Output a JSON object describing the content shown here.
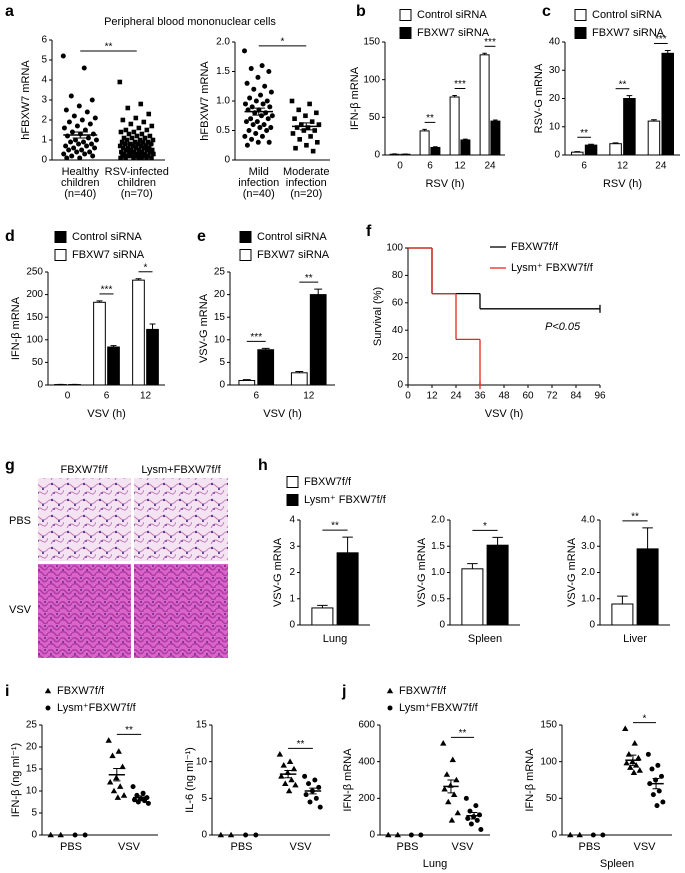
{
  "histology": {
    "panel": "g",
    "columns": [
      "FBXW7f/f",
      "Lysm+FBXW7f/f"
    ],
    "rows": [
      "PBS",
      "VSV"
    ]
  },
  "chart_data": [
    {
      "type": "dot",
      "panel": "a",
      "title": "Peripheral blood mononuclear cells",
      "ylabel": "hFBXW7 mRNA",
      "categories": [
        [
          "Healthy",
          "children",
          "(n=40)"
        ],
        [
          "RSV-infected",
          "children",
          "(n=70)"
        ]
      ],
      "markers": [
        "circle",
        "square"
      ],
      "color": "#000000",
      "points": [
        [
          5.2,
          4.6,
          3.2,
          3.0,
          2.7,
          2.5,
          2.4,
          2.2,
          2.1,
          2.0,
          1.9,
          1.8,
          1.7,
          1.6,
          1.5,
          1.4,
          1.3,
          1.3,
          1.2,
          1.1,
          1.0,
          1.0,
          0.9,
          0.9,
          0.8,
          0.8,
          0.7,
          0.7,
          0.6,
          0.6,
          0.5,
          0.5,
          0.4,
          0.4,
          0.3,
          0.3,
          0.2,
          0.2,
          0.1,
          0.1
        ],
        [
          3.9,
          2.8,
          2.6,
          2.3,
          2.1,
          2.0,
          1.9,
          1.8,
          1.7,
          1.6,
          1.5,
          1.5,
          1.4,
          1.4,
          1.3,
          1.3,
          1.2,
          1.2,
          1.1,
          1.1,
          1.1,
          1.0,
          1.0,
          1.0,
          0.9,
          0.9,
          0.9,
          0.9,
          0.8,
          0.8,
          0.8,
          0.8,
          0.7,
          0.7,
          0.7,
          0.7,
          0.6,
          0.6,
          0.6,
          0.6,
          0.6,
          0.5,
          0.5,
          0.5,
          0.5,
          0.5,
          0.4,
          0.4,
          0.4,
          0.4,
          0.4,
          0.3,
          0.3,
          0.3,
          0.3,
          0.3,
          0.3,
          0.2,
          0.2,
          0.2,
          0.2,
          0.2,
          0.2,
          0.1,
          0.1,
          0.1,
          0.1,
          0.1,
          0.1,
          0.1
        ]
      ],
      "means": [
        1.25,
        0.8
      ],
      "sems": [
        0.15,
        0.08
      ],
      "ylim": [
        0,
        6
      ],
      "yticks": [
        0,
        1,
        2,
        3,
        4,
        5,
        6
      ],
      "significance": [
        {
          "label": "**"
        }
      ]
    },
    {
      "type": "dot",
      "ylabel": "hFBXW7 mRNA",
      "categories": [
        [
          "Mild",
          "infection",
          "(n=40)"
        ],
        [
          "Moderate",
          "infection",
          "(n=20)"
        ]
      ],
      "markers": [
        "circle",
        "square"
      ],
      "color": "#000000",
      "points": [
        [
          1.85,
          1.6,
          1.55,
          1.5,
          1.4,
          1.3,
          1.25,
          1.2,
          1.15,
          1.1,
          1.05,
          1.0,
          1.0,
          0.95,
          0.95,
          0.9,
          0.9,
          0.85,
          0.85,
          0.8,
          0.8,
          0.75,
          0.75,
          0.7,
          0.7,
          0.65,
          0.65,
          0.6,
          0.6,
          0.55,
          0.55,
          0.5,
          0.5,
          0.45,
          0.4,
          0.4,
          0.35,
          0.3,
          0.3,
          0.25
        ],
        [
          1.0,
          0.95,
          0.85,
          0.8,
          0.75,
          0.7,
          0.65,
          0.6,
          0.6,
          0.55,
          0.55,
          0.5,
          0.5,
          0.45,
          0.4,
          0.35,
          0.3,
          0.25,
          0.2,
          0.15
        ]
      ],
      "means": [
        0.82,
        0.57
      ],
      "sems": [
        0.06,
        0.06
      ],
      "ylim": [
        0,
        2
      ],
      "yticks": [
        0,
        0.5,
        {
          "value": 1,
          "label": "1.0"
        },
        1.5,
        {
          "value": 2,
          "label": "2.0"
        }
      ],
      "significance": [
        {
          "label": "*"
        }
      ]
    },
    {
      "type": "bar",
      "panel": "b",
      "ylabel": "IFN-β mRNA",
      "xlabel": "RSV (h)",
      "categories": [
        "0",
        "6",
        "12",
        "24"
      ],
      "series": [
        {
          "name": "Control siRNA",
          "color": "#ffffff",
          "values": [
            1,
            32,
            77,
            133
          ],
          "errors": [
            0.5,
            2,
            2,
            2
          ]
        },
        {
          "name": "FBXW7 siRNA",
          "color": "#000000",
          "values": [
            1,
            10,
            20,
            45
          ],
          "errors": [
            0.3,
            1,
            1,
            1.5
          ]
        }
      ],
      "ylim": [
        0,
        150
      ],
      "yticks": [
        0,
        50,
        100,
        150
      ],
      "legend": "top",
      "significance": [
        {
          "label": "**",
          "category": 1
        },
        {
          "label": "***",
          "category": 2
        },
        {
          "label": "***",
          "category": 3
        }
      ]
    },
    {
      "type": "bar",
      "panel": "c",
      "ylabel": "RSV-G mRNA",
      "xlabel": "RSV (h)",
      "categories": [
        "6",
        "12",
        "24"
      ],
      "series": [
        {
          "name": "Control siRNA",
          "color": "#ffffff",
          "values": [
            1,
            4,
            12
          ],
          "errors": [
            0.2,
            0.3,
            0.5
          ]
        },
        {
          "name": "FBXW7 siRNA",
          "color": "#000000",
          "values": [
            3.5,
            20,
            36
          ],
          "errors": [
            0.3,
            1,
            1
          ]
        }
      ],
      "ylim": [
        0,
        40
      ],
      "yticks": [
        0,
        10,
        20,
        30,
        40
      ],
      "legend": "top",
      "significance": [
        {
          "label": "**",
          "category": 0
        },
        {
          "label": "**",
          "category": 1
        },
        {
          "label": "***",
          "category": 2
        }
      ]
    },
    {
      "type": "bar",
      "panel": "d",
      "ylabel": "IFN-β mRNA",
      "xlabel": "VSV (h)",
      "categories": [
        "0",
        "6",
        "12"
      ],
      "bar_order": "reversed",
      "series": [
        {
          "name": "Control siRNA",
          "color": "#000000",
          "values": [
            1,
            84,
            123
          ],
          "errors": [
            0.5,
            3,
            12
          ]
        },
        {
          "name": "FBXW7 siRNA",
          "color": "#ffffff",
          "values": [
            1,
            183,
            232
          ],
          "errors": [
            0.5,
            3,
            3
          ]
        }
      ],
      "ylim": [
        0,
        250
      ],
      "yticks": [
        0,
        50,
        100,
        150,
        200,
        250
      ],
      "legend": "top",
      "significance": [
        {
          "label": "***",
          "category": 1
        },
        {
          "label": "*",
          "category": 2
        }
      ]
    },
    {
      "type": "bar",
      "panel": "e",
      "ylabel": "VSV-G mRNA",
      "xlabel": "VSV (h)",
      "categories": [
        "6",
        "12"
      ],
      "bar_order": "reversed",
      "series": [
        {
          "name": "Control siRNA",
          "color": "#000000",
          "values": [
            7.8,
            20
          ],
          "errors": [
            0.3,
            1.2
          ]
        },
        {
          "name": "FBXW7 siRNA",
          "color": "#ffffff",
          "values": [
            1,
            2.7
          ],
          "errors": [
            0.2,
            0.3
          ]
        }
      ],
      "ylim": [
        0,
        25
      ],
      "yticks": [
        0,
        5,
        10,
        15,
        20,
        25
      ],
      "legend": "top",
      "significance": [
        {
          "label": "***",
          "category": 0
        },
        {
          "label": "**",
          "category": 1
        }
      ]
    },
    {
      "type": "step",
      "panel": "f",
      "ylabel": "Survival (%)",
      "xlabel": "VSV (h)",
      "annotation": "P<0.05",
      "series": [
        {
          "name": "FBXW7f/f",
          "color": "#000000",
          "x": [
            0,
            12,
            36,
            96
          ],
          "values": [
            100,
            66.7,
            55.6,
            55.6
          ]
        },
        {
          "name": "Lysm⁺ FBXW7f/f",
          "color": "#e8261e",
          "x": [
            0,
            12,
            24,
            36
          ],
          "values": [
            100,
            66.7,
            33.3,
            0
          ]
        }
      ],
      "xlim": [
        0,
        96
      ],
      "xticks": [
        0,
        12,
        24,
        36,
        48,
        60,
        72,
        84,
        96
      ],
      "ylim": [
        0,
        100
      ],
      "yticks": [
        0,
        20,
        40,
        60,
        80,
        100
      ],
      "legend": "top-right"
    },
    {
      "type": "bar",
      "panel": "h",
      "ylabel": "VSV-G mRNA",
      "xlabel": "Lung",
      "categories": [
        null
      ],
      "series": [
        {
          "name": "FBXW7f/f",
          "color": "#ffffff",
          "values": [
            0.65
          ],
          "errors": [
            0.1
          ]
        },
        {
          "name": "Lysm⁺ FBXW7f/f",
          "color": "#000000",
          "values": [
            2.75
          ],
          "errors": [
            0.6
          ]
        }
      ],
      "ylim": [
        0,
        4
      ],
      "yticks": [
        0,
        1,
        2,
        3,
        4
      ],
      "legend": "top-left",
      "significance": [
        {
          "label": "**",
          "category": 0
        }
      ]
    },
    {
      "type": "bar",
      "ylabel": "VSV-G mRNA",
      "xlabel": "Spleen",
      "categories": [
        null
      ],
      "series": [
        {
          "color": "#ffffff",
          "values": [
            1.07
          ],
          "errors": [
            0.1
          ]
        },
        {
          "color": "#000000",
          "values": [
            1.52
          ],
          "errors": [
            0.15
          ]
        }
      ],
      "ylim": [
        0,
        2
      ],
      "yticks": [
        0,
        0.5,
        {
          "value": 1,
          "label": "1.0"
        },
        1.5,
        {
          "value": 2,
          "label": "2.0"
        }
      ],
      "significance": [
        {
          "label": "*",
          "category": 0
        }
      ]
    },
    {
      "type": "bar",
      "ylabel": "VSV-G mRNA",
      "xlabel": "Liver",
      "categories": [
        null
      ],
      "series": [
        {
          "color": "#ffffff",
          "values": [
            0.8
          ],
          "errors": [
            0.3
          ]
        },
        {
          "color": "#000000",
          "values": [
            2.9
          ],
          "errors": [
            0.8
          ]
        }
      ],
      "ylim": [
        0,
        4
      ],
      "yticks": [
        0,
        {
          "value": 1,
          "label": "1.0"
        },
        {
          "value": 2,
          "label": "2.0"
        },
        {
          "value": 3,
          "label": "3.0"
        },
        {
          "value": 4,
          "label": "4.0"
        }
      ],
      "significance": [
        {
          "label": "**",
          "category": 0
        }
      ]
    },
    {
      "type": "dot-grouped",
      "panel": "i",
      "ylabel": "IFN-β (ng ml⁻¹)",
      "categories": [
        "PBS",
        "VSV"
      ],
      "legend": "top-left",
      "series": [
        {
          "name": "FBXW7f/f",
          "marker": "triangle",
          "color": "#000000",
          "points": [
            [
              0,
              0
            ],
            [
              21.5,
              19,
              18,
              15.5,
              13,
              12,
              11,
              10,
              9,
              8.5
            ]
          ],
          "means": [
            null,
            13.7
          ],
          "sems": [
            null,
            1.4
          ]
        },
        {
          "name": "Lysm⁺FBXW7f/f",
          "marker": "circle",
          "color": "#000000",
          "points": [
            [
              0,
              0
            ],
            [
              11,
              9.5,
              9,
              8.5,
              8.2,
              8,
              7.8,
              7.5,
              7.2
            ]
          ],
          "means": [
            null,
            8.5
          ],
          "sems": [
            null,
            0.4
          ]
        }
      ],
      "ylim": [
        0,
        25
      ],
      "yticks": [
        0,
        5,
        10,
        15,
        20,
        25
      ],
      "significance": [
        {
          "label": "**",
          "category": 1
        }
      ]
    },
    {
      "type": "dot-grouped",
      "ylabel": "IL-6 (ng ml⁻¹)",
      "categories": [
        "PBS",
        "VSV"
      ],
      "series": [
        {
          "marker": "triangle",
          "color": "#000000",
          "points": [
            [
              0,
              0
            ],
            [
              11,
              10,
              9.5,
              9,
              8.5,
              8,
              7.5,
              7,
              6.8,
              6
            ]
          ],
          "means": [
            null,
            8.3
          ],
          "sems": [
            null,
            0.5
          ]
        },
        {
          "marker": "circle",
          "color": "#000000",
          "points": [
            [
              0,
              0
            ],
            [
              8,
              7.5,
              7,
              6.5,
              6,
              5.5,
              5,
              4.5,
              3.8
            ]
          ],
          "means": [
            null,
            6
          ],
          "sems": [
            null,
            0.4
          ]
        }
      ],
      "ylim": [
        0,
        15
      ],
      "yticks": [
        0,
        5,
        10,
        15
      ],
      "significance": [
        {
          "label": "**",
          "category": 1
        }
      ]
    },
    {
      "type": "dot-grouped",
      "panel": "j",
      "ylabel": "IFN-β mRNA",
      "xlabel": "Lung",
      "categories": [
        "PBS",
        "VSV"
      ],
      "legend": "top-left",
      "series": [
        {
          "name": "FBXW7f/f",
          "marker": "triangle",
          "color": "#000000",
          "points": [
            [
              0,
              0
            ],
            [
              500,
              410,
              330,
              300,
              270,
              250,
              220,
              180,
              120,
              80
            ]
          ],
          "means": [
            null,
            265
          ],
          "sems": [
            null,
            35
          ]
        },
        {
          "name": "Lysm⁺FBXW7f/f",
          "marker": "circle",
          "color": "#000000",
          "points": [
            [
              0,
              0
            ],
            [
              200,
              160,
              130,
              110,
              100,
              90,
              80,
              60,
              30
            ]
          ],
          "means": [
            null,
            105
          ],
          "sems": [
            null,
            18
          ]
        }
      ],
      "ylim": [
        0,
        600
      ],
      "yticks": [
        0,
        200,
        400,
        600
      ],
      "significance": [
        {
          "label": "**",
          "category": 1
        }
      ]
    },
    {
      "type": "dot-grouped",
      "ylabel": "IFN-β mRNA",
      "xlabel": "Spleen",
      "categories": [
        "PBS",
        "VSV"
      ],
      "series": [
        {
          "marker": "triangle",
          "color": "#000000",
          "points": [
            [
              0,
              0
            ],
            [
              145,
              125,
              110,
              105,
              100,
              98,
              95,
              92,
              88,
              85
            ]
          ],
          "means": [
            null,
            102
          ],
          "sems": [
            null,
            7
          ]
        },
        {
          "marker": "circle",
          "color": "#000000",
          "points": [
            [
              0,
              0
            ],
            [
              110,
              95,
              90,
              80,
              75,
              70,
              60,
              55,
              45,
              40
            ]
          ],
          "means": [
            null,
            70
          ],
          "sems": [
            null,
            7
          ]
        }
      ],
      "ylim": [
        0,
        150
      ],
      "yticks": [
        0,
        50,
        100,
        150
      ],
      "significance": [
        {
          "label": "*",
          "category": 1
        }
      ]
    }
  ]
}
